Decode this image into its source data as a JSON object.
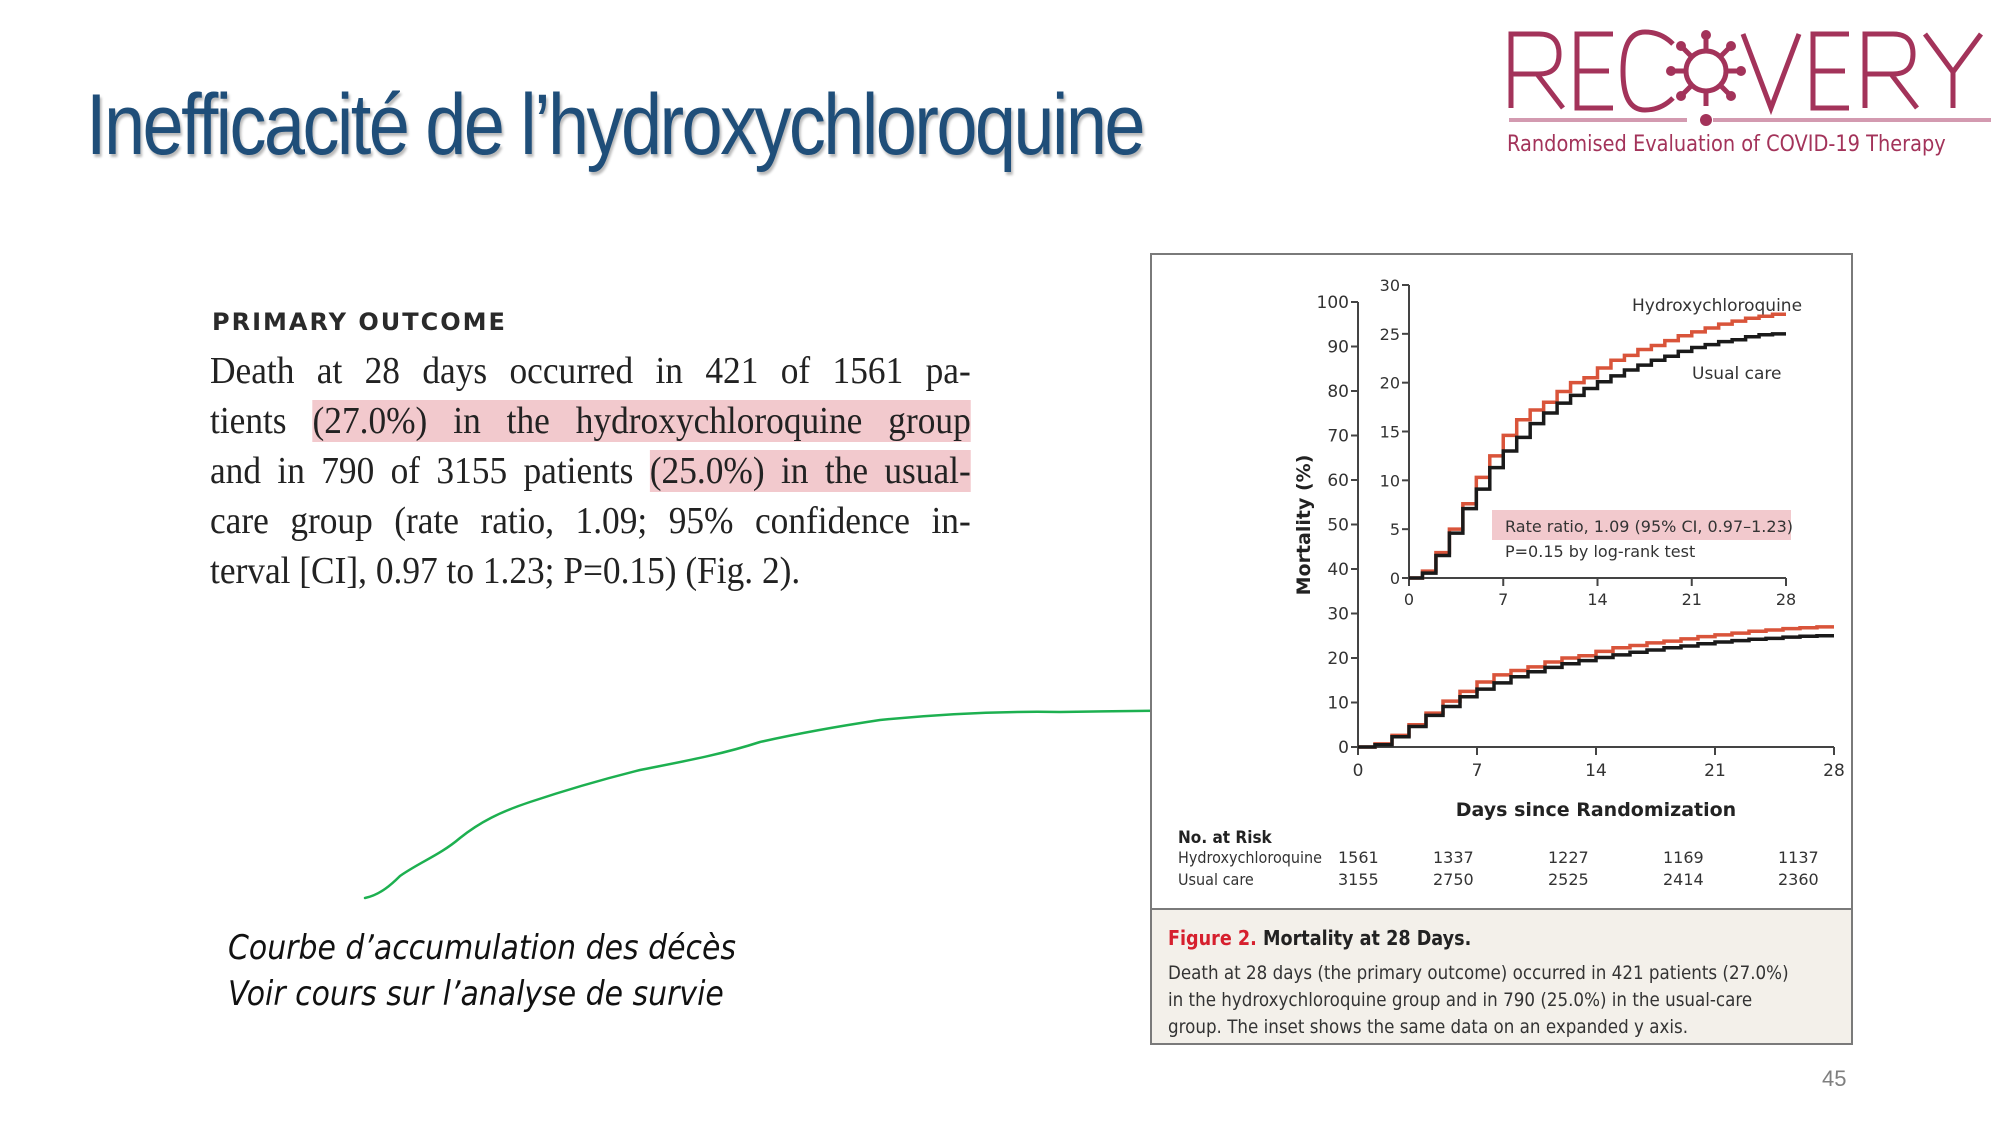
{
  "slide": {
    "title": "Inefficacité de l’hydroxychloroquine",
    "page_number": "45",
    "logo": {
      "word": "RECOVERY",
      "subtitle": "Randomised Evaluation of COVID-19 Therapy",
      "color": "#A3335A"
    },
    "primary_outcome": {
      "heading": "PRIMARY OUTCOME",
      "lines": [
        {
          "pre": "Death at 28 days occurred in 421 of 1561 pa-",
          "hl": "",
          "post": ""
        },
        {
          "pre": "tients ",
          "hl": "(27.0%) in the hydroxychloroquine group",
          "post": ""
        },
        {
          "pre": "and in 790 of 3155 patients ",
          "hl": "(25.0%) in the usual-",
          "post": ""
        },
        {
          "pre": "care group (rate ratio, 1.09; 95% confidence in-",
          "hl": "",
          "post": ""
        },
        {
          "pre": "terval [CI], 0.97 to 1.23; P=0.15) (Fig. 2).",
          "hl": "",
          "post": ""
        }
      ],
      "highlight_color": "#F2C9CD"
    },
    "annotation": {
      "line1": "Courbe d’accumulation des décès",
      "line2": "Voir cours sur l’analyse de survie",
      "arrow_color": "#1DB050"
    },
    "figure": {
      "caption_label": "Figure 2.",
      "caption_title": "Mortality at 28 Days.",
      "caption_lines": [
        "Death at 28 days (the primary outcome) occurred in 421 patients (27.0%)",
        "in the hydroxychloroquine group and in 790 (25.0%) in the usual-care",
        "group. The inset shows the same data on an expanded y axis."
      ],
      "risk_table": {
        "heading": "No. at Risk",
        "rows": [
          {
            "label": "Hydroxychloroquine",
            "values": [
              "1561",
              "1337",
              "1227",
              "1169",
              "1137"
            ]
          },
          {
            "label": "Usual care",
            "values": [
              "3155",
              "2750",
              "2525",
              "2414",
              "2360"
            ]
          }
        ]
      },
      "stats_box": {
        "line1": "Rate ratio, 1.09 (95% CI, 0.97–1.23)",
        "line2": "P=0.15 by log-rank test"
      }
    }
  },
  "chart_data": [
    {
      "type": "line",
      "title": "Mortality at 28 Days (main plot)",
      "xlabel": "Days since Randomization",
      "ylabel": "Mortality (%)",
      "xlim": [
        0,
        28
      ],
      "ylim": [
        0,
        100
      ],
      "x_ticks": [
        0,
        7,
        14,
        21,
        28
      ],
      "y_ticks": [
        0,
        10,
        20,
        30,
        40,
        50,
        60,
        70,
        80,
        90,
        100
      ],
      "step": true,
      "x": [
        0,
        1,
        2,
        3,
        4,
        5,
        6,
        7,
        8,
        9,
        10,
        11,
        12,
        13,
        14,
        15,
        16,
        17,
        18,
        19,
        20,
        21,
        22,
        23,
        24,
        25,
        26,
        27,
        28
      ],
      "series": [
        {
          "name": "Hydroxychloroquine",
          "color": "#D9543A",
          "values": [
            0,
            0.7,
            2.6,
            5.0,
            7.6,
            10.3,
            12.5,
            14.6,
            16.2,
            17.2,
            18.0,
            19.1,
            20.0,
            20.5,
            21.5,
            22.3,
            22.8,
            23.4,
            23.8,
            24.3,
            24.8,
            25.2,
            25.6,
            26.0,
            26.3,
            26.6,
            26.8,
            27.0,
            27.0
          ]
        },
        {
          "name": "Usual care",
          "color": "#1A1A1A",
          "values": [
            0,
            0.5,
            2.3,
            4.6,
            7.1,
            9.1,
            11.3,
            13.0,
            14.4,
            15.8,
            16.9,
            17.9,
            18.7,
            19.4,
            20.1,
            20.7,
            21.3,
            21.8,
            22.3,
            22.7,
            23.2,
            23.6,
            23.9,
            24.2,
            24.4,
            24.7,
            24.9,
            25.0,
            25.0
          ]
        }
      ],
      "grid": false
    },
    {
      "type": "line",
      "title": "Inset (expanded y axis)",
      "xlim": [
        0,
        28
      ],
      "ylim": [
        0,
        30
      ],
      "x_ticks": [
        0,
        7,
        14,
        21,
        28
      ],
      "y_ticks": [
        0,
        5,
        10,
        15,
        20,
        25,
        30
      ],
      "legend": [
        "Hydroxychloroquine",
        "Usual care"
      ],
      "annotations": [
        "Rate ratio, 1.09 (95% CI, 0.97–1.23)",
        "P=0.15 by log-rank test"
      ],
      "series_ref": "same data as main plot",
      "grid": false
    }
  ]
}
